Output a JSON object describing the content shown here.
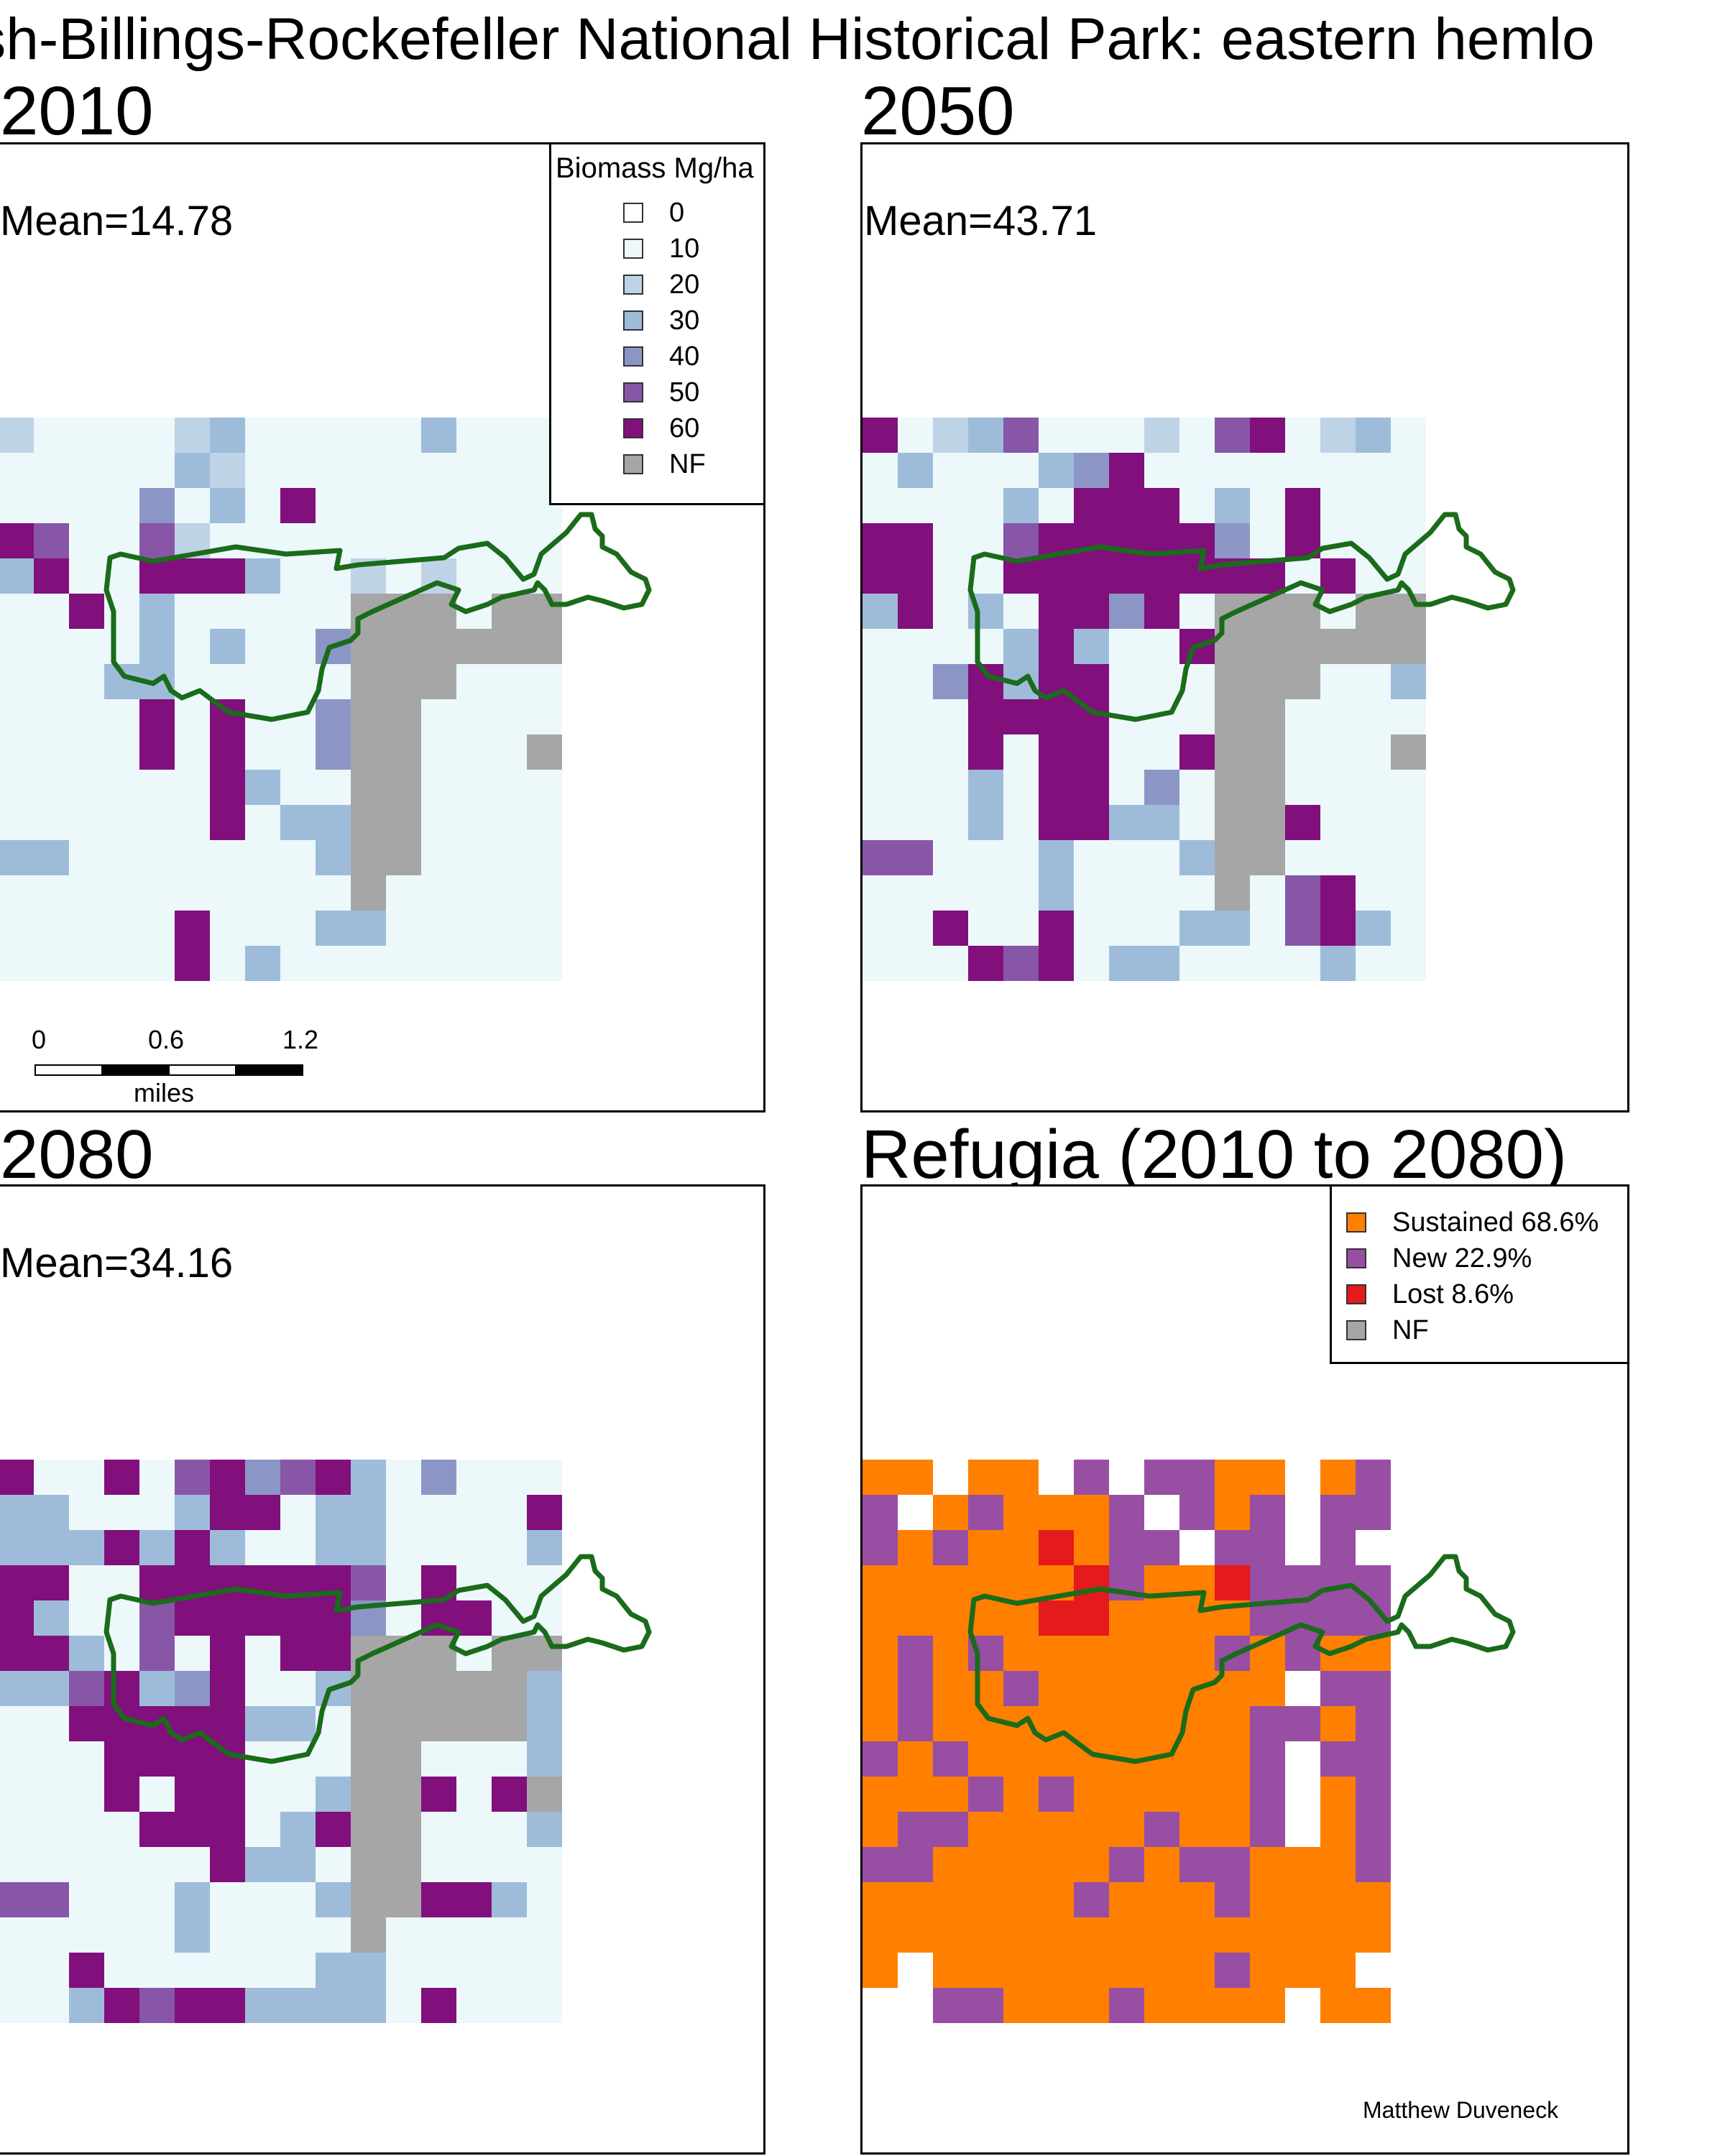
{
  "title": "rsh-Billings-Rockefeller National Historical Park: eastern hemlo",
  "colors": {
    "0": "#ffffff",
    "10": "#edf8fb",
    "20": "#bfd3e6",
    "30": "#9ebcda",
    "40": "#8c96c6",
    "50": "#8856a7",
    "60": "#810f7c",
    "NF": "#a6a6a6",
    "S": "#ff7f00",
    "N": "#984ea3",
    "L": "#e41a1c",
    "boundary": "#1a6b1a"
  },
  "grid_rows": [
    "...",
    "...",
    "...",
    "...",
    "...",
    "...",
    "...",
    "...",
    "..",
    "..",
    "..",
    "..",
    "...",
    "...",
    "...",
    "..."
  ],
  "panels": [
    {
      "id": "2010",
      "title": "2010",
      "mean": "Mean=14.78",
      "grid": [
        "2111123111113111",
        "1111132111111111",
        "1111413161111111",
        "6511521111111111",
        "3611666311212111",
        "1161311111NNN1NN",
        "1111313114NNNNNN",
        "1113311111NNN111",
        "1111616114NN1111",
        "1111616114NN111N",
        "1111116311NN1111",
        "1111116133NN1111",
        "3311111113NN1111",
        "1111111111N11111",
        "1111161113311111",
        "1111161311111111"
      ],
      "legend": {
        "title": "Biomass Mg/ha",
        "items": [
          {
            "label": "0",
            "key": "0"
          },
          {
            "label": "10",
            "key": "10"
          },
          {
            "label": "20",
            "key": "20"
          },
          {
            "label": "30",
            "key": "30"
          },
          {
            "label": "40",
            "key": "40"
          },
          {
            "label": "50",
            "key": "50"
          },
          {
            "label": "60",
            "key": "60"
          },
          {
            "label": "NF",
            "key": "NF"
          }
        ]
      },
      "scale": {
        "ticks": [
          "0",
          "0.6",
          "1.2"
        ],
        "unit": "miles"
      }
    },
    {
      "id": "2050",
      "title": "2050",
      "mean": "Mean=43.71",
      "mean_value": 43.71
    },
    {
      "id": "2080",
      "title": "2080",
      "mean": "Mean=34.16",
      "mean_value": 34.16
    },
    {
      "id": "refugia",
      "title": "Refugia (2010 to 2080)",
      "legend": {
        "items": [
          {
            "label": "Sustained 68.6%",
            "key": "S"
          },
          {
            "label": "New 22.9%",
            "key": "N"
          },
          {
            "label": "Lost 8.6%",
            "key": "L"
          },
          {
            "label": "NF",
            "key": "NF"
          }
        ]
      }
    }
  ],
  "credit": "Matthew Duveneck"
}
